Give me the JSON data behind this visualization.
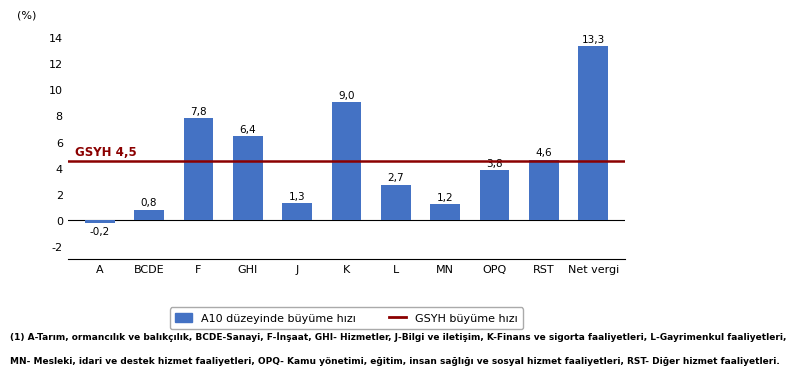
{
  "categories": [
    "A",
    "BCDE",
    "F",
    "GHI",
    "J",
    "K",
    "L",
    "MN",
    "OPQ",
    "RST",
    "Net vergi"
  ],
  "values": [
    -0.2,
    0.8,
    7.8,
    6.4,
    1.3,
    9.0,
    2.7,
    1.2,
    3.8,
    4.6,
    13.3
  ],
  "bar_color": "#4472C4",
  "gsyh_value": 4.5,
  "gsyh_color": "#8B0000",
  "gsyh_label": "GSYH 4,5",
  "ylim": [
    -3,
    15
  ],
  "yticks": [
    -2,
    0,
    2,
    4,
    6,
    8,
    10,
    12,
    14
  ],
  "ylabel": "(%)",
  "legend_bar_label": "A10 düzeyinde büyüme hızı",
  "legend_line_label": "GSYH büyüme hızı",
  "footnote_line1": "(1) A-Tarım, ormancılık ve balıkçılık, BCDE-Sanayi, F-İnşaat, GHI- Hizmetler, J-Bilgi ve iletişim, K-Finans ve sigorta faaliyetleri, L-Gayrimenkul faaliyetleri,",
  "footnote_line2": "MN- Mesleki, idari ve destek hizmet faaliyetleri, OPQ- Kamu yönetimi, eğitim, insan sağlığı ve sosyal hizmet faaliyetleri, RST- Diğer hizmet faaliyetleri.",
  "background_color": "#ffffff",
  "value_fontsize": 7.5,
  "tick_fontsize": 8,
  "ylabel_fontsize": 8,
  "legend_fontsize": 8,
  "footnote_fontsize": 6.5,
  "gsyh_text_fontsize": 8.5
}
